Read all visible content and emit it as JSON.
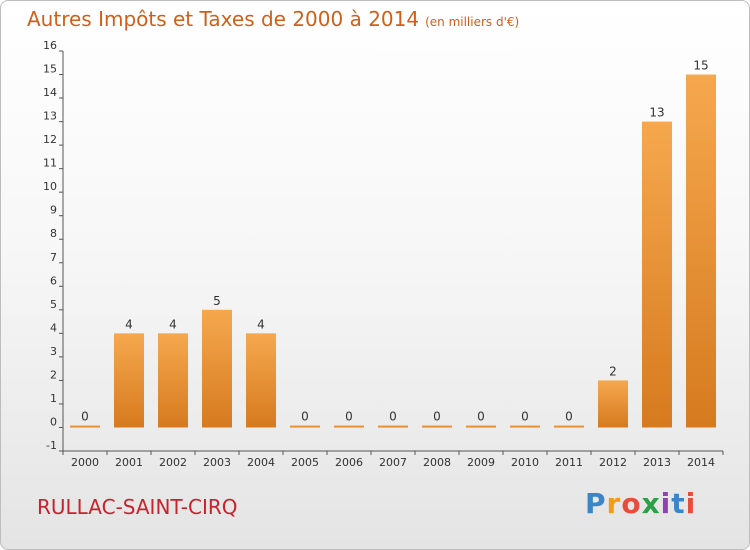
{
  "chart_data": {
    "type": "bar",
    "title": "Autres Impôts et Taxes de 2000 à 2014",
    "subtitle": "(en milliers d'€)",
    "xlabel": "",
    "ylabel": "",
    "categories": [
      "2000",
      "2001",
      "2002",
      "2003",
      "2004",
      "2005",
      "2006",
      "2007",
      "2008",
      "2009",
      "2010",
      "2011",
      "2012",
      "2013",
      "2014"
    ],
    "values": [
      0,
      4,
      4,
      5,
      4,
      0,
      0,
      0,
      0,
      0,
      0,
      0,
      2,
      13,
      15
    ],
    "data_labels": [
      "0",
      "4",
      "4",
      "5",
      "4",
      "0",
      "0",
      "0",
      "0",
      "0",
      "0",
      "0",
      "2",
      "13",
      "15"
    ],
    "ylim": [
      -1,
      16
    ],
    "yticks": [
      -1,
      0,
      1,
      2,
      3,
      4,
      5,
      6,
      7,
      8,
      9,
      10,
      11,
      12,
      13,
      14,
      15,
      16
    ],
    "grid": false,
    "legend": "none"
  },
  "location": "RULLAC-SAINT-CIRQ",
  "brand": {
    "letters": [
      "P",
      "r",
      "o",
      "x",
      "i",
      "t",
      "i"
    ],
    "colors": [
      "#3a86c8",
      "#f39c12",
      "#e74c3c",
      "#2e9e48",
      "#8e44ad",
      "#3a86c8",
      "#e74c3c"
    ]
  },
  "colors": {
    "bar_top": "#f6a84e",
    "bar_bottom": "#d67a1f",
    "axis": "#555555"
  }
}
